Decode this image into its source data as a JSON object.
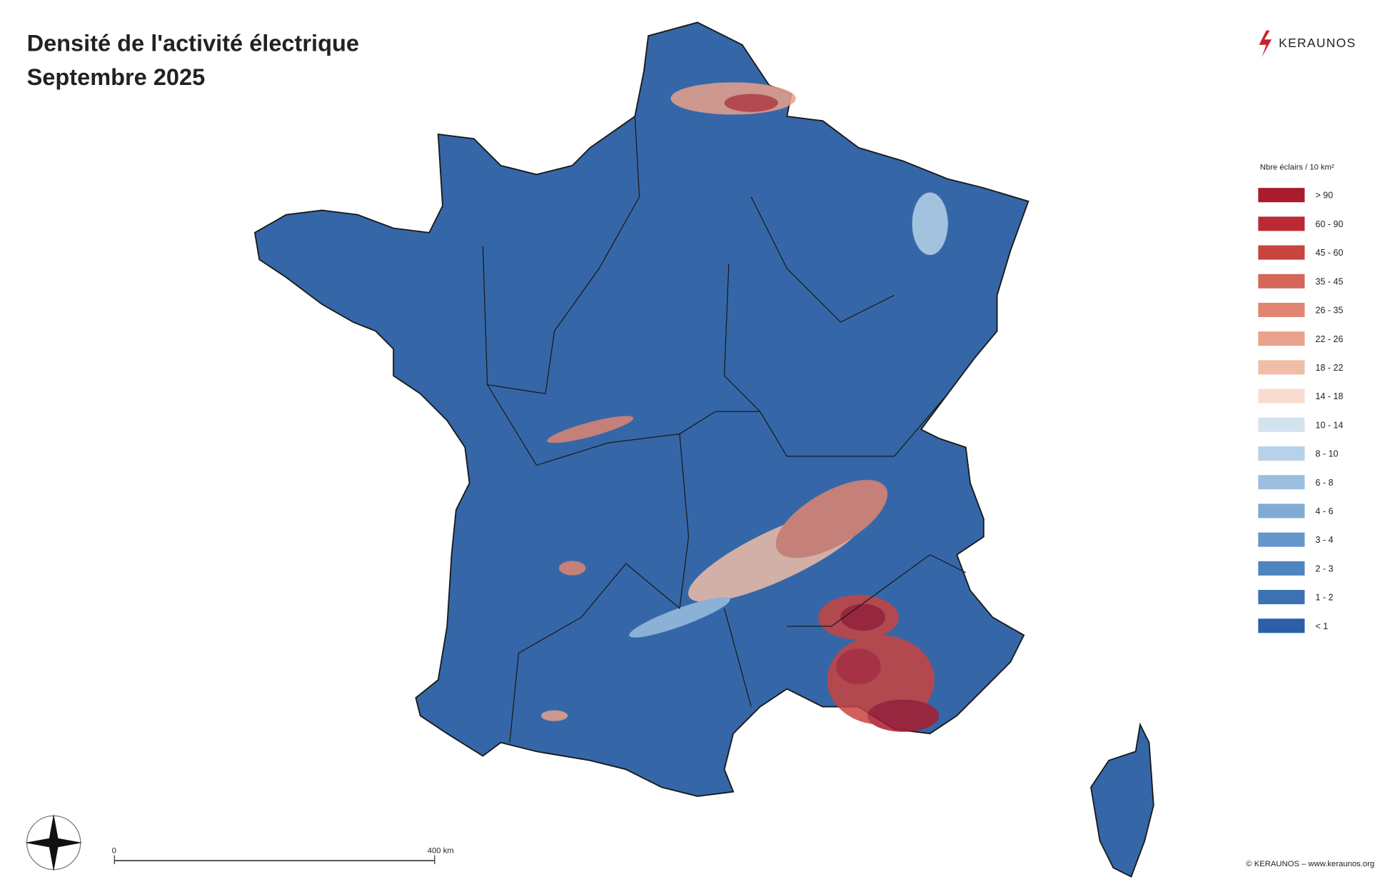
{
  "title_lines": [
    "Densité de l'activité électrique",
    "Septembre 2025"
  ],
  "logo": "KERAUNOS",
  "legend": {
    "title": "Nbre éclairs / 10 km²",
    "classes": [
      {
        "label": "> 90",
        "color": "#a81c2c"
      },
      {
        "label": "60 - 90",
        "color": "#bb2a33"
      },
      {
        "label": "45 - 60",
        "color": "#c8443f"
      },
      {
        "label": "35 - 45",
        "color": "#d4665a"
      },
      {
        "label": "26 - 35",
        "color": "#df8571"
      },
      {
        "label": "22 - 26",
        "color": "#e8a18b"
      },
      {
        "label": "18 - 22",
        "color": "#f0bda7"
      },
      {
        "label": "14 - 18",
        "color": "#f9dccf"
      },
      {
        "label": "10 - 14",
        "color": "#d3e3ee"
      },
      {
        "label": "8 - 10",
        "color": "#b7d2e8"
      },
      {
        "label": "6 - 8",
        "color": "#9cbfdf"
      },
      {
        "label": "4 - 6",
        "color": "#80abd5"
      },
      {
        "label": "3 - 4",
        "color": "#6597ca"
      },
      {
        "label": "2 - 3",
        "color": "#4e84c0"
      },
      {
        "label": "1 - 2",
        "color": "#3c71b4"
      },
      {
        "label": "< 1",
        "color": "#2b5fa8"
      }
    ]
  },
  "scale_bar": {
    "start": "0",
    "end": "400 km"
  },
  "copyright": "© KERAUNOS – www.keraunos.org"
}
